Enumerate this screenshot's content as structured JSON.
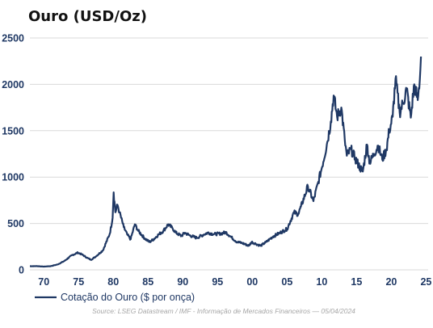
{
  "chart_data": {
    "type": "line",
    "title": "Ouro (USD/Oz)",
    "xlabel": "",
    "ylabel": "",
    "ylim": [
      0,
      2500
    ],
    "xlim": [
      1968,
      2025.3
    ],
    "yticks": [
      0,
      500,
      1000,
      1500,
      2000,
      2500
    ],
    "xtick_labels": [
      "70",
      "75",
      "80",
      "85",
      "90",
      "95",
      "00",
      "05",
      "10",
      "15",
      "20",
      "25"
    ],
    "xtick_years": [
      1970,
      1975,
      1980,
      1985,
      1990,
      1995,
      2000,
      2005,
      2010,
      2015,
      2020,
      2025
    ],
    "grid": "horizontal",
    "legend_position": "bottom-left",
    "color": "#1f3864",
    "source": "Source: LSEG Datastream / IMF - Informação de Mercados Financeiros — 05/04/2024",
    "series": [
      {
        "name": "Cotação do Ouro ($ por onça)",
        "points": [
          [
            1968.0,
            39
          ],
          [
            1969.0,
            40
          ],
          [
            1970.0,
            35
          ],
          [
            1971.0,
            40
          ],
          [
            1972.0,
            58
          ],
          [
            1973.0,
            97
          ],
          [
            1974.0,
            155
          ],
          [
            1974.9,
            186
          ],
          [
            1975.5,
            165
          ],
          [
            1976.3,
            127
          ],
          [
            1976.8,
            108
          ],
          [
            1977.5,
            145
          ],
          [
            1978.5,
            210
          ],
          [
            1979.5,
            390
          ],
          [
            1979.9,
            560
          ],
          [
            1980.05,
            835
          ],
          [
            1980.3,
            620
          ],
          [
            1980.6,
            700
          ],
          [
            1980.9,
            620
          ],
          [
            1981.5,
            460
          ],
          [
            1982.0,
            380
          ],
          [
            1982.5,
            330
          ],
          [
            1983.1,
            490
          ],
          [
            1983.6,
            420
          ],
          [
            1984.5,
            340
          ],
          [
            1985.2,
            300
          ],
          [
            1985.8,
            330
          ],
          [
            1986.5,
            380
          ],
          [
            1987.2,
            420
          ],
          [
            1987.9,
            490
          ],
          [
            1988.5,
            450
          ],
          [
            1989.0,
            400
          ],
          [
            1989.8,
            365
          ],
          [
            1990.3,
            400
          ],
          [
            1991.0,
            370
          ],
          [
            1992.0,
            345
          ],
          [
            1993.0,
            380
          ],
          [
            1993.6,
            400
          ],
          [
            1994.5,
            385
          ],
          [
            1995.5,
            390
          ],
          [
            1996.2,
            405
          ],
          [
            1997.0,
            350
          ],
          [
            1997.8,
            300
          ],
          [
            1998.5,
            290
          ],
          [
            1999.5,
            260
          ],
          [
            1999.9,
            300
          ],
          [
            2000.5,
            280
          ],
          [
            2001.2,
            260
          ],
          [
            2002.0,
            300
          ],
          [
            2003.0,
            360
          ],
          [
            2004.0,
            400
          ],
          [
            2005.0,
            440
          ],
          [
            2006.0,
            620
          ],
          [
            2006.6,
            600
          ],
          [
            2007.0,
            680
          ],
          [
            2008.0,
            900
          ],
          [
            2008.8,
            740
          ],
          [
            2009.5,
            950
          ],
          [
            2010.0,
            1100
          ],
          [
            2010.8,
            1380
          ],
          [
            2011.3,
            1600
          ],
          [
            2011.7,
            1880
          ],
          [
            2012.2,
            1650
          ],
          [
            2012.8,
            1750
          ],
          [
            2013.3,
            1400
          ],
          [
            2013.6,
            1230
          ],
          [
            2014.2,
            1300
          ],
          [
            2014.8,
            1200
          ],
          [
            2015.5,
            1100
          ],
          [
            2015.9,
            1060
          ],
          [
            2016.5,
            1350
          ],
          [
            2016.9,
            1150
          ],
          [
            2017.5,
            1250
          ],
          [
            2018.1,
            1340
          ],
          [
            2018.7,
            1190
          ],
          [
            2019.3,
            1300
          ],
          [
            2019.7,
            1500
          ],
          [
            2020.2,
            1650
          ],
          [
            2020.6,
            2060
          ],
          [
            2021.2,
            1700
          ],
          [
            2021.7,
            1800
          ],
          [
            2022.2,
            1950
          ],
          [
            2022.8,
            1640
          ],
          [
            2023.3,
            2000
          ],
          [
            2023.8,
            1830
          ],
          [
            2024.1,
            2050
          ],
          [
            2024.27,
            2300
          ]
        ]
      }
    ]
  }
}
